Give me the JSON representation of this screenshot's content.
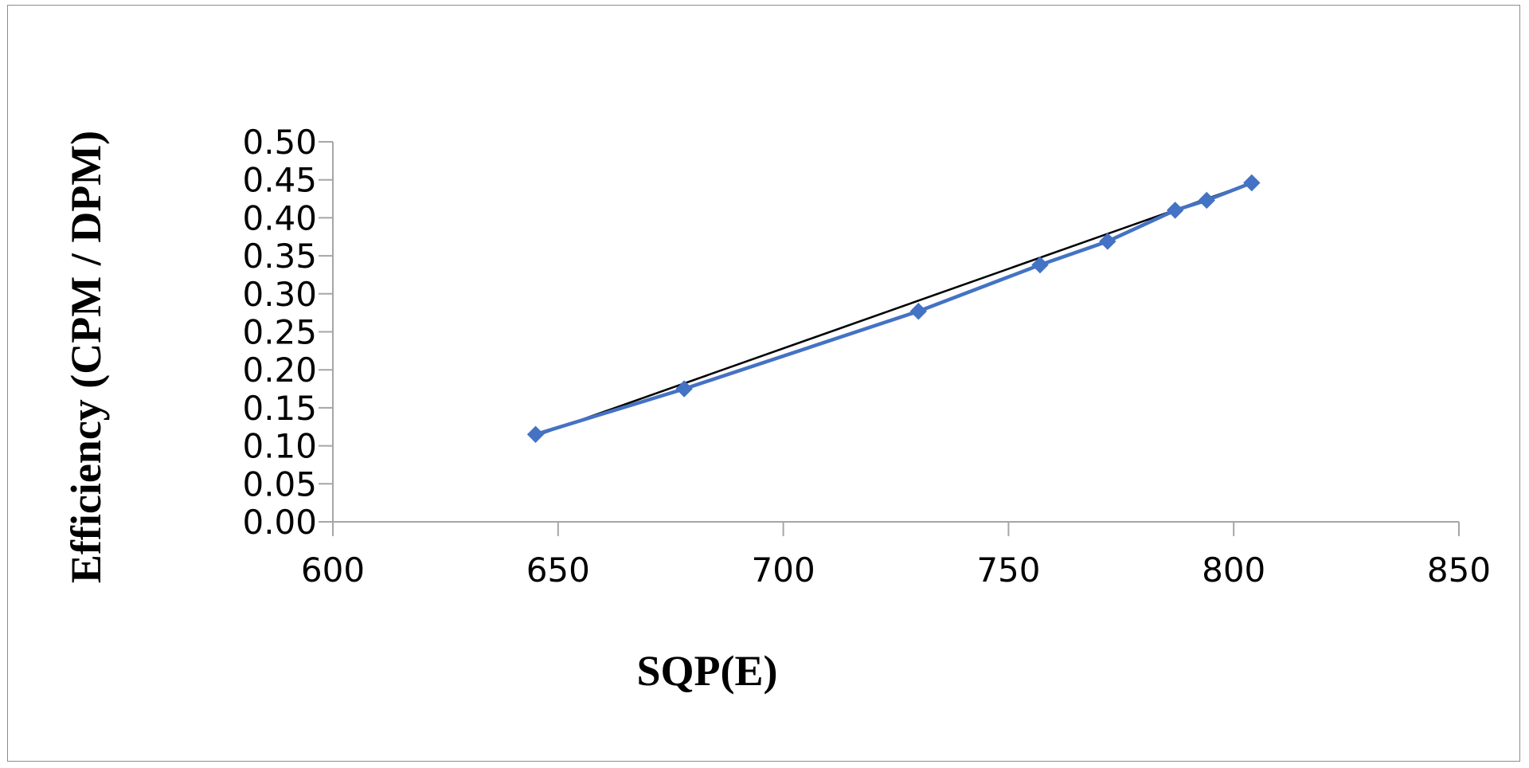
{
  "chart_data": {
    "type": "scatter",
    "title": "",
    "xlabel": "SQP(E)",
    "ylabel": "Efficiency (CPM / DPM)",
    "xlim": [
      600,
      850
    ],
    "ylim": [
      0,
      0.5
    ],
    "x_ticks": [
      "600",
      "650",
      "700",
      "750",
      "800",
      "850"
    ],
    "y_ticks": [
      "0.00",
      "0.05",
      "0.10",
      "0.15",
      "0.20",
      "0.25",
      "0.30",
      "0.35",
      "0.40",
      "0.45",
      "0.50"
    ],
    "grid": false,
    "legend": "none",
    "series": [
      {
        "marker": "diamond",
        "color": "#4472C4",
        "x": [
          645,
          678,
          730,
          757,
          772,
          787,
          794,
          804
        ],
        "y": [
          0.115,
          0.175,
          0.277,
          0.338,
          0.369,
          0.41,
          0.423,
          0.446
        ]
      }
    ],
    "trendline": {
      "type": "linear",
      "color": "#000000",
      "x": [
        645,
        804
      ],
      "y": [
        0.113,
        0.446
      ]
    }
  }
}
